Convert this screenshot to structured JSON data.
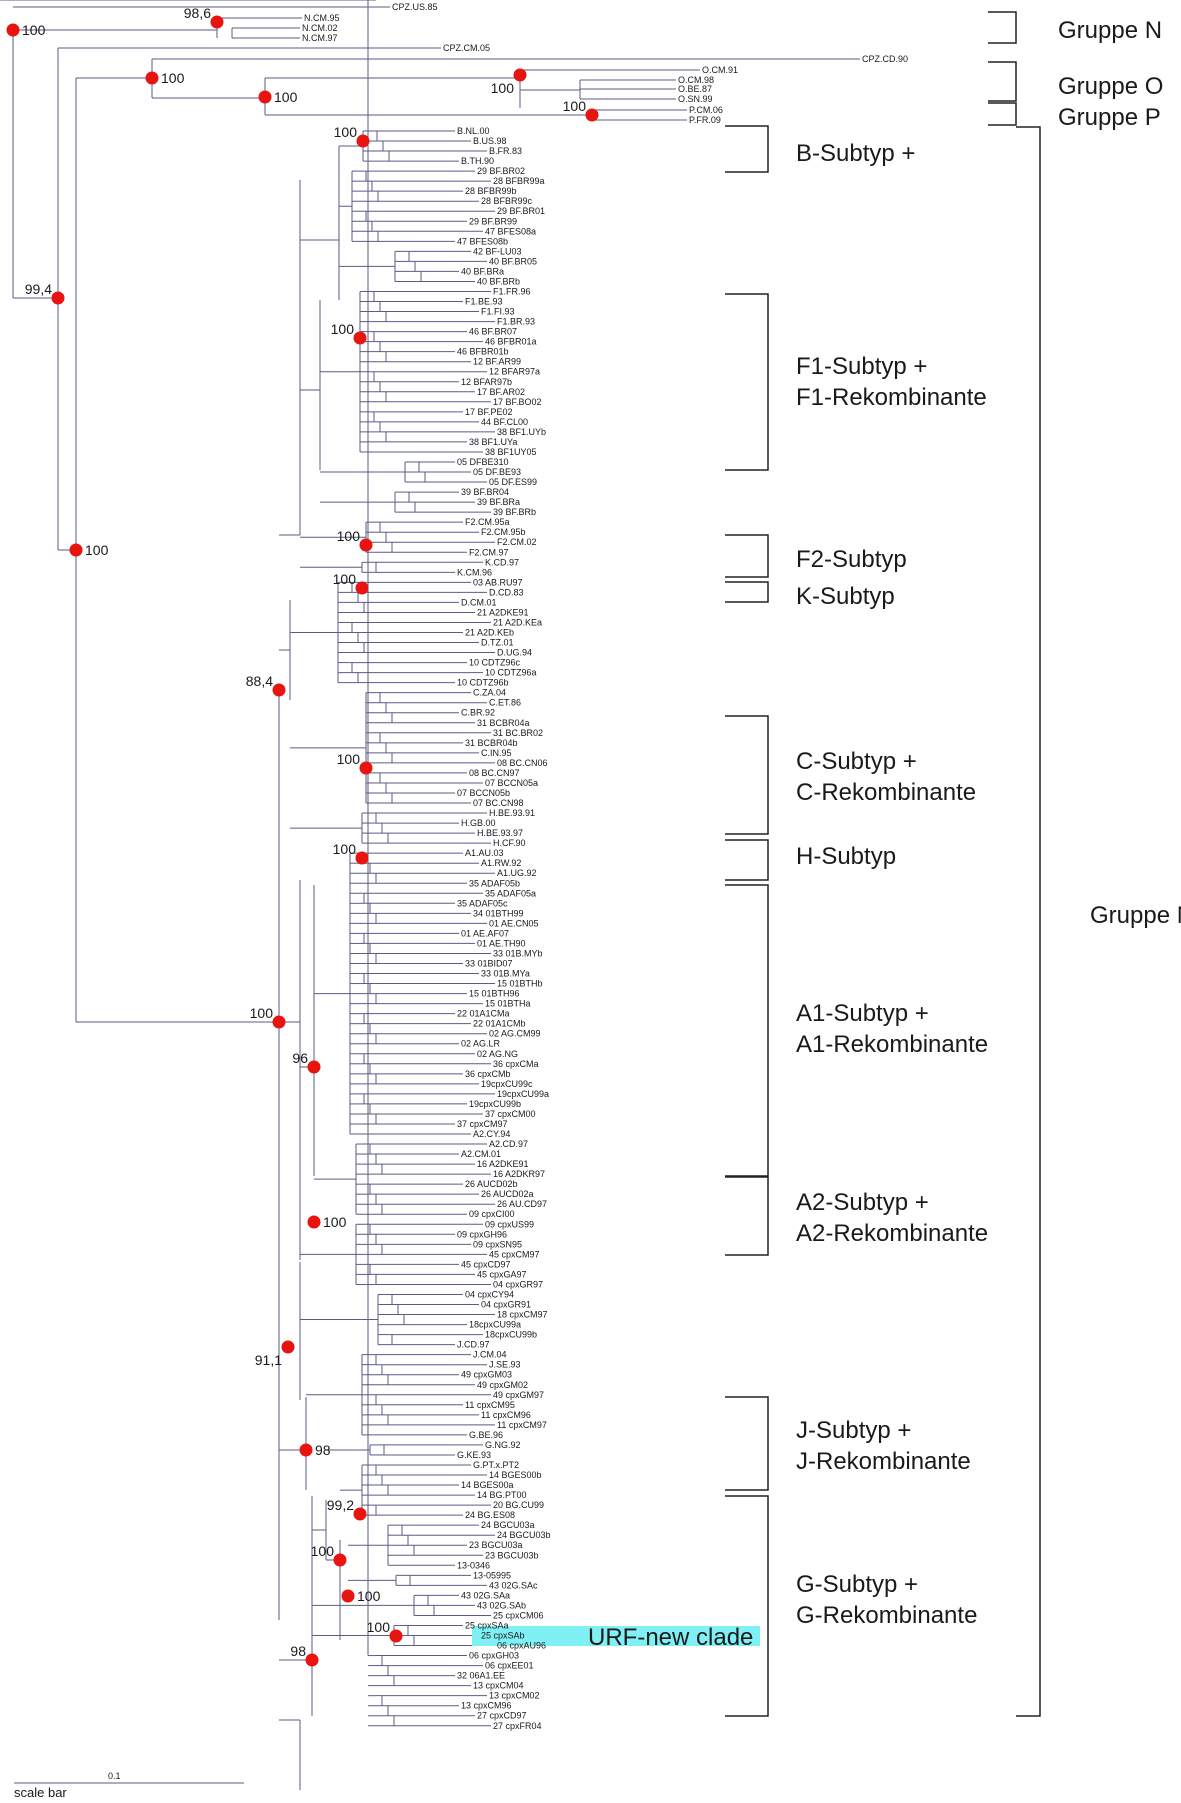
{
  "leaves_top": [
    "CPZ.US.85",
    "N.CM.95",
    "N.CM.02",
    "N.CM.97",
    "CPZ.CM.05",
    "CPZ.CD.90",
    "O.CM.91",
    "O.CM.98",
    "O.BE.87",
    "O.SN.99",
    "P.CM.06",
    "P.FR.09"
  ],
  "leaves_m": [
    "B.NL.00",
    "B.US.98",
    "B.FR.83",
    "B.TH.90",
    "29 BF.BR02",
    "28 BFBR99a",
    "28 BFBR99b",
    "28 BFBR99c",
    "29 BF.BR01",
    "29 BF.BR99",
    "47 BFES08a",
    "47 BFES08b",
    "42 BF-LU03",
    "40 BF.BR05",
    "40 BF.BRa",
    "40 BF.BRb",
    "F1.FR.96",
    "F1.BE.93",
    "F1.FI.93",
    "F1.BR.93",
    "46 BF.BR07",
    "46 BFBR01a",
    "46 BFBR01b",
    "12 BF.AR99",
    "12 BFAR97a",
    "12 BFAR97b",
    "17 BF.AR02",
    "17 BF.BO02",
    "17 BF.PE02",
    "44 BF.CL00",
    "38 BF1.UYb",
    "38 BF1.UYa",
    "38 BF1UY05",
    "05 DFBE310",
    "05 DF.BE93",
    "05 DF.ES99",
    "39 BF.BR04",
    "39 BF.BRa",
    "39 BF.BRb",
    "F2.CM.95a",
    "F2.CM.95b",
    "F2.CM.02",
    "F2.CM.97",
    "K.CD.97",
    "K.CM.96",
    "03 AB.RU97",
    "D.CD.83",
    "D.CM.01",
    "21 A2DKE91",
    "21 A2D.KEa",
    "21 A2D.KEb",
    "D.TZ.01",
    "D.UG.94",
    "10 CDTZ96c",
    "10 CDTZ96a",
    "10 CDTZ96b",
    "C.ZA.04",
    "C.ET.86",
    "C.BR.92",
    "31 BCBR04a",
    "31 BC.BR02",
    "31 BCBR04b",
    "C.IN.95",
    "08 BC.CN06",
    "08 BC.CN97",
    "07 BCCN05a",
    "07 BCCN05b",
    "07 BC.CN98",
    "H.BE.93.91",
    "H.GB.00",
    "H.BE.93.97",
    "H.CF.90",
    "A1.AU.03",
    "A1.RW.92",
    "A1.UG.92",
    "35 ADAF05b",
    "35 ADAF05a",
    "35 ADAF05c",
    "34 01BTH99",
    "01 AE.CN05",
    "01 AE.AF07",
    "01 AE.TH90",
    "33 01B.MYb",
    "33 01BID07",
    "33 01B.MYa",
    "15 01BTHb",
    "15 01BTH96",
    "15 01BTHa",
    "22 01A1CMa",
    "22 01A1CMb",
    "02 AG.CM99",
    "02 AG.LR",
    "02 AG.NG",
    "36 cpxCMa",
    "36 cpxCMb",
    "19cpxCU99c",
    "19cpxCU99a",
    "19cpxCU99b",
    "37 cpxCM00",
    "37 cpxCM97",
    "A2.CY.94",
    "A2.CD.97",
    "A2.CM.01",
    "16 A2DKE91",
    "16 A2DKR97",
    "26 AUCD02b",
    "26 AUCD02a",
    "26 AU.CD97",
    "09 cpxCI00",
    "09 cpxUS99",
    "09 cpxGH96",
    "09 cpxSN95",
    "45 cpxCM97",
    "45 cpxCD97",
    "45 cpxGA97",
    "04 cpxGR97",
    "04 cpxCY94",
    "04 cpxGR91",
    "18 cpxCM97",
    "18cpxCU99a",
    "18cpxCU99b",
    "J.CD.97",
    "J.CM.04",
    "J.SE.93",
    "49 cpxGM03",
    "49 cpxGM02",
    "49 cpxGM97",
    "11 cpxCM95",
    "11 cpxCM96",
    "11 cpxCM97",
    "G.BE.96",
    "G.NG.92",
    "G.KE.93",
    "G.PT.x.PT2",
    "14 BGES00b",
    "14 BGES00a",
    "14 BG.PT00",
    "20 BG.CU99",
    "24 BG.ES08",
    "24 BGCU03a",
    "24 BGCU03b",
    "23 BGCU03a",
    "23 BGCU03b",
    "13-0346",
    "13-05995",
    "43 02G.SAc",
    "43 02G.SAa",
    "43 02G.SAb",
    "25 cpxCM06",
    "25 cpxSAa",
    "25 cpxSAb",
    "06 cpxAU96",
    "06 cpxGH03",
    "06 cpxEE01",
    "32 06A1.EE",
    "13 cpxCM04",
    "13 cpxCM02",
    "13 cpxCM96",
    "27 cpxCD97",
    "27 cpxFR04"
  ],
  "bootstrap": {
    "root": "100",
    "n": "98,6",
    "no": "99,4",
    "o_p": "100",
    "op": "100",
    "o": "100",
    "p": "100",
    "m_root": "100",
    "b": "100",
    "f1": "100",
    "f2": "100",
    "k": "100",
    "dsub": "88,4",
    "c": "100",
    "h": "100",
    "a": "100",
    "a1": "96",
    "a2": "100",
    "a_big": "91,1",
    "j": "98",
    "g_top": "99,2",
    "g1": "100",
    "g2": "100",
    "urf": "100",
    "g_low": "98"
  },
  "groups": {
    "n": "Gruppe N",
    "o": "Gruppe O",
    "p": "Gruppe P",
    "m": "Gruppe M",
    "b": "B-Subtyp +",
    "f1_1": "F1-Subtyp +",
    "f1_2": "F1-Rekombinante",
    "f2": "F2-Subtyp",
    "k": "K-Subtyp",
    "c_1": "C-Subtyp +",
    "c_2": "C-Rekombinante",
    "h": "H-Subtyp",
    "a1_1": "A1-Subtyp +",
    "a1_2": "A1-Rekombinante",
    "a2_1": "A2-Subtyp +",
    "a2_2": "A2-Rekombinante",
    "j_1": "J-Subtyp +",
    "j_2": "J-Rekombinante",
    "g_1": "G-Subtyp +",
    "g_2": "G-Rekombinante"
  },
  "highlight": "URF-new clade",
  "scale": {
    "label": "scale bar",
    "value": "0.1"
  },
  "colors": {
    "node": "#e8140f",
    "highlight": "#7ff0f3",
    "branch": "#5b5b86"
  }
}
